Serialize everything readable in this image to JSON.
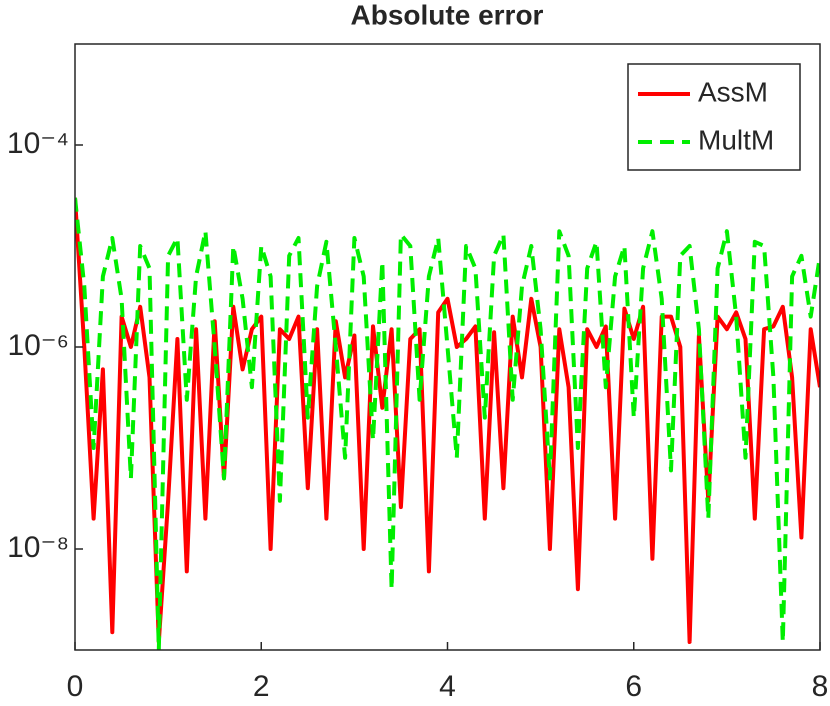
{
  "chart_data": {
    "type": "line",
    "title": "Absolute error",
    "log_y": true,
    "legend": "top-right",
    "x": [
      0,
      0.1,
      0.2,
      0.3,
      0.4,
      0.5,
      0.6,
      0.7,
      0.8,
      0.9,
      1,
      1.1,
      1.2,
      1.3,
      1.4,
      1.5,
      1.6,
      1.7,
      1.8,
      1.9,
      2,
      2.1,
      2.2,
      2.3,
      2.4,
      2.5,
      2.6,
      2.7,
      2.8,
      2.9,
      3,
      3.1,
      3.2,
      3.3,
      3.4,
      3.5,
      3.6,
      3.7,
      3.8,
      3.9,
      4,
      4.1,
      4.2,
      4.3,
      4.4,
      4.5,
      4.6,
      4.7,
      4.8,
      4.9,
      5,
      5.1,
      5.2,
      5.3,
      5.4,
      5.5,
      5.6,
      5.7,
      5.8,
      5.9,
      6,
      6.1,
      6.2,
      6.3,
      6.4,
      6.5,
      6.6,
      6.7,
      6.8,
      6.9,
      7,
      7.1,
      7.2,
      7.3,
      7.4,
      7.5,
      7.6,
      7.7,
      7.8,
      7.9,
      8
    ],
    "series": [
      {
        "name": "AssM",
        "color": "#ff0000",
        "dashed": false,
        "values": [
          3e-05,
          1e-06,
          2e-08,
          6e-07,
          1.5e-09,
          2e-06,
          1e-06,
          2.5e-06,
          5e-07,
          1.2e-09,
          3e-08,
          1.2e-06,
          6e-09,
          1.5e-06,
          2e-08,
          1.8e-06,
          5e-08,
          2.5e-06,
          6e-07,
          1.5e-06,
          2e-06,
          1e-08,
          1.5e-06,
          1.2e-06,
          2e-06,
          4e-08,
          1.5e-06,
          2e-08,
          1.8e-06,
          5e-07,
          1.3e-06,
          1e-08,
          1.6e-06,
          2.5e-07,
          1.5e-06,
          2.6e-08,
          1.2e-06,
          1.5e-06,
          6e-09,
          2.2e-06,
          3e-06,
          1e-06,
          1.2e-06,
          1.6e-06,
          2e-08,
          1.4e-06,
          4e-08,
          2e-06,
          5e-07,
          3e-06,
          1e-06,
          1e-08,
          1.5e-06,
          4e-07,
          4e-09,
          1.5e-06,
          1e-06,
          1.6e-06,
          2e-08,
          2.4e-06,
          1.2e-06,
          2.5e-06,
          8e-09,
          2e-06,
          2e-06,
          1e-06,
          1.2e-09,
          1.3e-06,
          3e-08,
          2e-06,
          1.5e-06,
          2.2e-06,
          1.2e-06,
          2e-08,
          1.5e-06,
          1.6e-06,
          2.5e-06,
          5e-07,
          1.3e-08,
          1.5e-06,
          4e-07
        ]
      },
      {
        "name": "MultM",
        "color": "#00ee00",
        "dashed": true,
        "values": [
          3e-05,
          4e-06,
          1e-07,
          5e-06,
          1.2e-05,
          3e-06,
          5e-08,
          1e-05,
          6e-06,
          1e-09,
          8e-06,
          1.2e-05,
          3e-07,
          5e-06,
          1.4e-05,
          1e-06,
          5e-08,
          1e-05,
          3e-06,
          4e-07,
          1e-05,
          5e-06,
          3e-08,
          8e-06,
          1.2e-05,
          2e-07,
          4e-06,
          1.1e-05,
          1e-06,
          8e-08,
          1.2e-05,
          5e-06,
          1.2e-07,
          7e-06,
          4e-09,
          1.3e-05,
          1e-05,
          3e-07,
          5e-06,
          1.2e-05,
          1e-06,
          8e-08,
          1e-05,
          6e-06,
          2e-07,
          8e-06,
          1.3e-05,
          3e-07,
          4e-06,
          1e-05,
          1.5e-06,
          5e-08,
          1.4e-05,
          8e-06,
          1e-07,
          6e-06,
          1.1e-05,
          4e-07,
          5e-06,
          1e-05,
          2e-07,
          6e-06,
          1.4e-05,
          3e-06,
          6e-08,
          8e-06,
          1e-05,
          1.5e-06,
          2e-08,
          6e-06,
          1.4e-05,
          2e-06,
          8e-08,
          1.1e-05,
          1e-05,
          5e-07,
          1.2e-09,
          5e-06,
          8e-06,
          2e-06,
          8e-06
        ]
      }
    ],
    "xlim": [
      0,
      8
    ],
    "xticks": [
      0,
      2,
      4,
      6,
      8
    ],
    "ylim": [
      1e-09,
      0.001
    ],
    "yticks": [
      {
        "value": 1e-08,
        "label": "10⁻⁸"
      },
      {
        "value": 1e-06,
        "label": "10⁻⁶"
      },
      {
        "value": 0.0001,
        "label": "10⁻⁴"
      }
    ]
  }
}
